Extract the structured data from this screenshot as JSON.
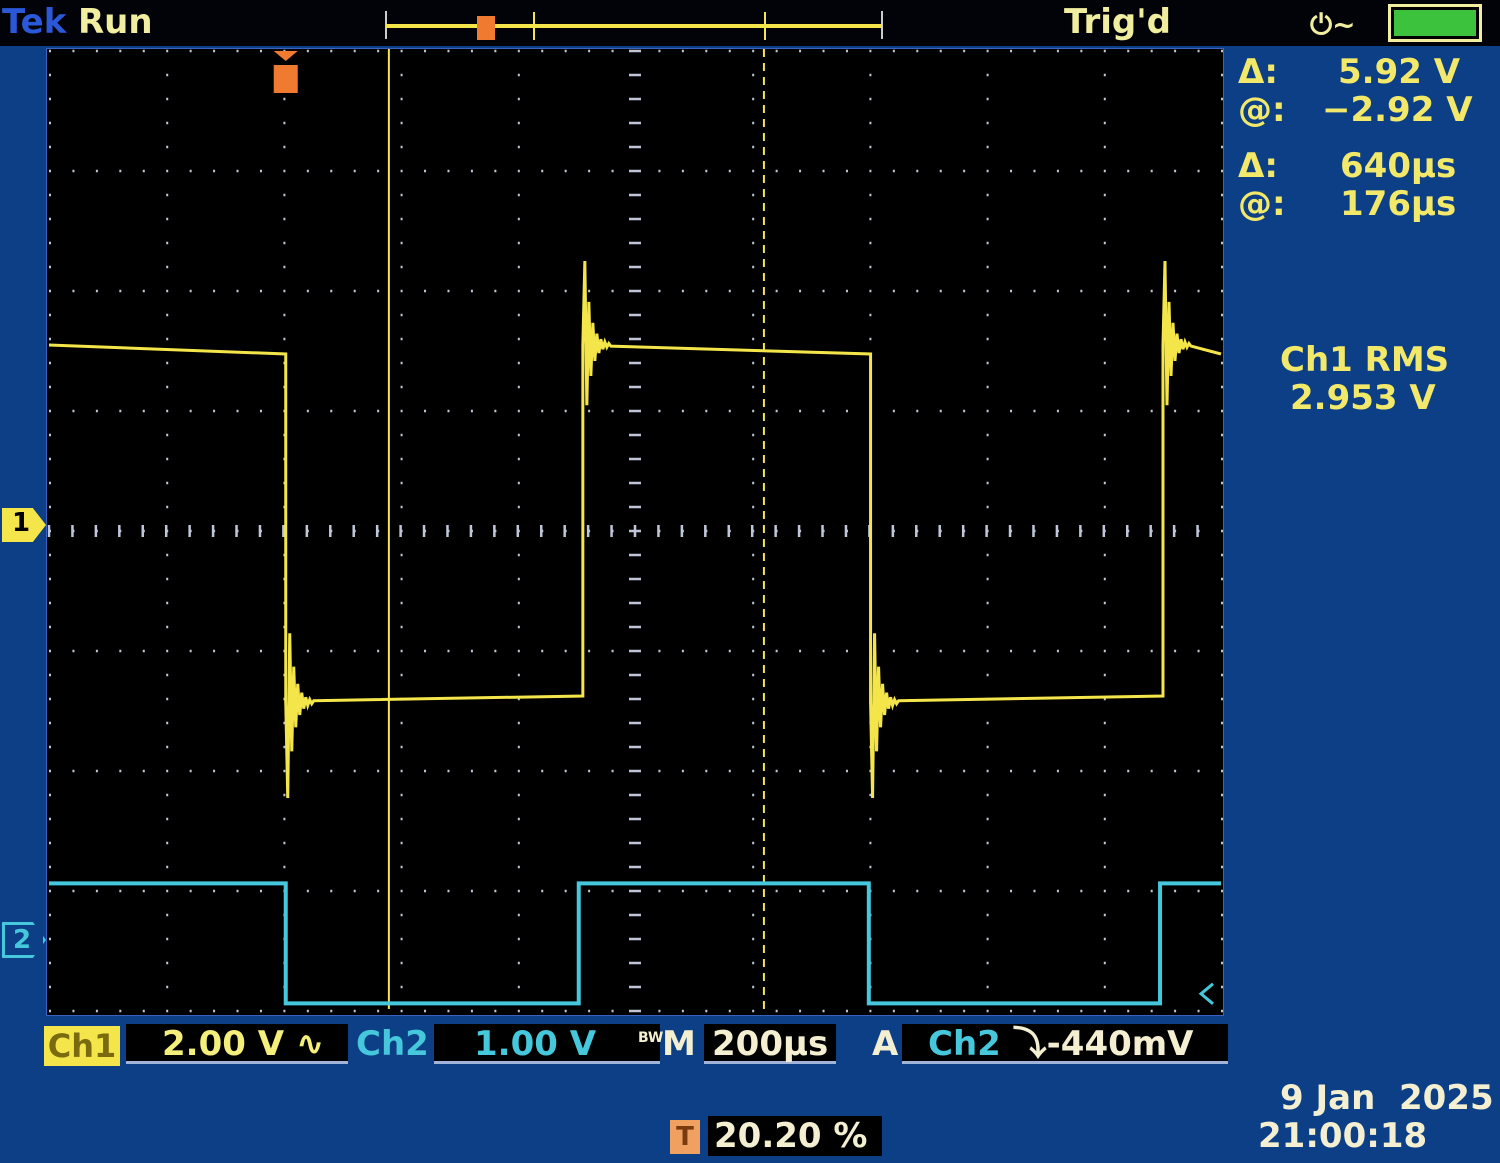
{
  "header": {
    "brand": "Tek",
    "acq_state": "Run",
    "trigger_state": "Trig'd",
    "power_icon": "ac-plug-icon",
    "battery_icon": "battery-full-icon"
  },
  "cursor_readout": {
    "v_delta_label": "Δ:",
    "v_delta": "5.92 V",
    "v_at_label": "@:",
    "v_at": "−2.92 V",
    "t_delta_label": "Δ:",
    "t_delta": "640µs",
    "t_at_label": "@:",
    "t_at": "176µs"
  },
  "measurement": {
    "label": "Ch1 RMS",
    "value": "2.953 V"
  },
  "channel_markers": {
    "ch1": "1",
    "ch2": "2"
  },
  "status_bar": {
    "ch1_label": "Ch1",
    "ch1_scale": "2.00 V",
    "ch1_coupling": "∿",
    "ch2_label": "Ch2",
    "ch2_scale": "1.00 V",
    "bw_label": "BW",
    "timebase_label": "M",
    "timebase": "200µs",
    "trigger_mode": "A",
    "trigger_source": "Ch2",
    "trigger_slope": "⤵",
    "trigger_level": "-440mV",
    "trigger_pos_icon": "T",
    "trigger_position": "20.20 %"
  },
  "datetime": {
    "date": "9 Jan  2025",
    "time": "21:00:18"
  },
  "colors": {
    "ch1": "#f4e64a",
    "ch2": "#45c8dc",
    "trigger": "#f07a30",
    "background": "#0d3f86"
  },
  "chart_data": {
    "type": "line",
    "x_unit": "µs",
    "xlim": [
      -404,
      1596
    ],
    "x_divisions": 10,
    "y_divisions": 8,
    "grid": true,
    "series": [
      {
        "name": "Ch1",
        "volts_per_div": 2.0,
        "edges_us": [
          0,
          507,
          998,
          1497
        ],
        "high_v": [
          3.1,
          2.95
        ],
        "low_v": [
          -2.85,
          -2.75
        ],
        "start": "high"
      },
      {
        "name": "Ch2",
        "volts_per_div": 1.0,
        "edges_us": [
          0,
          500,
          995,
          1492
        ],
        "high_v": 0.48,
        "low_v": -0.52,
        "start": "high"
      }
    ],
    "cursors": {
      "time_us": [
        176,
        816
      ]
    }
  }
}
